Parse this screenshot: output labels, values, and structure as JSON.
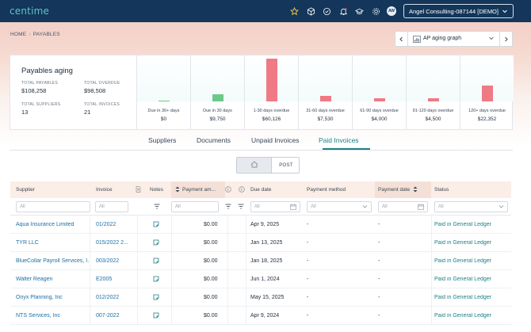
{
  "app": {
    "logo_text": "centime",
    "company_selector": "Angel Consulting-087144 [DEMO]",
    "avatar_initials": "AW"
  },
  "breadcrumb": {
    "home": "HOME",
    "current": "PAYABLES"
  },
  "view_selector": {
    "label": "AP aging graph"
  },
  "aging": {
    "title": "Payables aging",
    "total_payables_label": "TOTAL PAYABLES",
    "total_payables": "$108,258",
    "total_overdue_label": "TOTAL OVERDUE",
    "total_overdue": "$98,508",
    "total_suppliers_label": "TOTAL SUPPLIERS",
    "total_suppliers": "13",
    "total_invoices_label": "TOTAL INVOICES",
    "total_invoices": "21",
    "buckets": [
      {
        "label": "Due in 30+ days",
        "value": "$0"
      },
      {
        "label": "Due in 30 days",
        "value": "$9,750"
      },
      {
        "label": "1-30 days overdue",
        "value": "$60,126"
      },
      {
        "label": "31-60 days overdue",
        "value": "$7,530"
      },
      {
        "label": "61-90 days overdue",
        "value": "$4,000"
      },
      {
        "label": "91-120 days overdue",
        "value": "$4,500"
      },
      {
        "label": "120+ days overdue",
        "value": "$22,352"
      }
    ]
  },
  "chart_data": {
    "type": "bar",
    "categories": [
      "Due in 30+ days",
      "Due in 30 days",
      "1-30 days overdue",
      "31-60 days overdue",
      "61-90 days overdue",
      "91-120 days overdue",
      "120+ days overdue"
    ],
    "values": [
      0,
      9750,
      60126,
      7530,
      4000,
      4500,
      22352
    ],
    "colors": [
      "#6cc98a",
      "#6cc98a",
      "#ef7a85",
      "#ef7a85",
      "#ef7a85",
      "#ef7a85",
      "#ef7a85"
    ]
  },
  "tabs": [
    {
      "label": "Suppliers"
    },
    {
      "label": "Documents"
    },
    {
      "label": "Unpaid Invoices"
    },
    {
      "label": "Paid Invoices"
    }
  ],
  "toggle": {
    "post_label": "POST"
  },
  "table": {
    "headers": {
      "supplier": "Supplier",
      "invoice": "Invoice",
      "notes": "Notes",
      "payment_amount": "Payment am...",
      "due_date": "Due date",
      "payment_method": "Payment method",
      "payment_date": "Payment date",
      "status": "Status"
    },
    "filter_placeholder": "All",
    "rows": [
      {
        "supplier": "Aqua Insurance Limited",
        "invoice": "01/2022",
        "amount": "$0.00",
        "due_date": "Apr 9, 2025",
        "method": "-",
        "pay_date": "-",
        "status": "Paid in General Ledger"
      },
      {
        "supplier": "TYR LLC",
        "invoice": "015/2022 2...",
        "amount": "$0.00",
        "due_date": "Jan 13, 2025",
        "method": "-",
        "pay_date": "-",
        "status": "Paid in General Ledger"
      },
      {
        "supplier": "BlueCollar Payroll Services, I...",
        "invoice": "003/2022",
        "amount": "$0.00",
        "due_date": "Jan 18, 2025",
        "method": "-",
        "pay_date": "-",
        "status": "Paid in General Ledger"
      },
      {
        "supplier": "Walter Reagen",
        "invoice": "E2005",
        "amount": "$0.00",
        "due_date": "Jun 1, 2024",
        "method": "-",
        "pay_date": "-",
        "status": "Paid in General Ledger"
      },
      {
        "supplier": "Onyx Planning, Inc",
        "invoice": "012/2022",
        "amount": "$0.00",
        "due_date": "May 15, 2025",
        "method": "-",
        "pay_date": "-",
        "status": "Paid in General Ledger"
      },
      {
        "supplier": "NTS Services, Inc",
        "invoice": "007-2022",
        "amount": "$0.00",
        "due_date": "Apr 9, 2024",
        "method": "-",
        "pay_date": "-",
        "status": "Paid in General Ledger"
      }
    ]
  }
}
